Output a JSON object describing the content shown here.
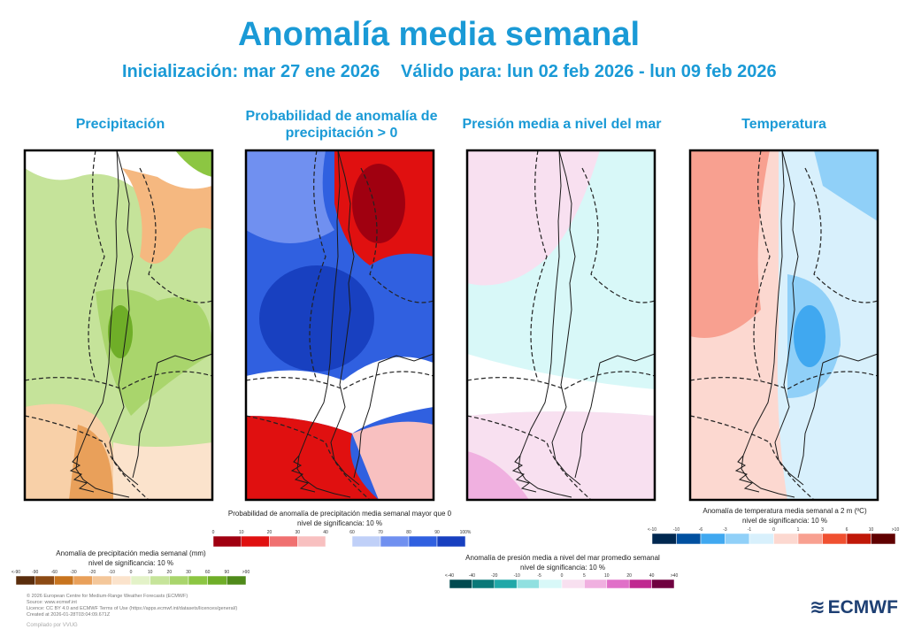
{
  "header": {
    "title": "Anomalía media semanal",
    "initialization": "Inicialización: mar 27 ene 2026",
    "valid": "Válido para: lun 02 feb 2026 - lun 09 feb 2026"
  },
  "panels": [
    {
      "title": "Precipitación"
    },
    {
      "title": "Probabilidad de anomalía de precipitación > 0"
    },
    {
      "title": "Presión media a nivel del mar"
    },
    {
      "title": "Temperatura"
    }
  ],
  "legends": {
    "precipitation": {
      "caption": "Anomalía de precipitación media semanal (mm)",
      "significance": "nivel de significancia: 10 %",
      "labels": [
        "<-90",
        "-90",
        "-60",
        "-30",
        "-20",
        "-10",
        "0",
        "10",
        "20",
        "30",
        "60",
        "90",
        ">90"
      ],
      "colors": [
        "#5a2d0c",
        "#8c4a14",
        "#c8741e",
        "#e9a05a",
        "#f4c79a",
        "#fbe3cc",
        "#e3f2c8",
        "#c6e49a",
        "#a9d56c",
        "#8cc642",
        "#6fae28",
        "#4f8a1a"
      ]
    },
    "probability": {
      "caption": "Probabilidad de anomalía de precipitación media semanal mayor que 0",
      "significance": "nivel de significancia: 10 %",
      "labels_low": [
        "0",
        "10",
        "20",
        "30",
        "40"
      ],
      "colors_low": [
        "#a00010",
        "#e01010",
        "#f07070",
        "#f8c0c0"
      ],
      "labels_high": [
        "60",
        "70",
        "80",
        "90",
        "100%"
      ],
      "colors_high": [
        "#c0d0f8",
        "#7090f0",
        "#3060e0",
        "#1840c0"
      ]
    },
    "pressure": {
      "caption": "Anomalía de presión media a nivel del mar promedio semanal",
      "significance": "nivel de significancia: 10 %",
      "labels": [
        "<-40",
        "-40",
        "-20",
        "-10",
        "-5",
        "0",
        "5",
        "10",
        "20",
        "40",
        ">40"
      ],
      "colors": [
        "#004a50",
        "#0a7878",
        "#20a8a8",
        "#90e0e0",
        "#d8f8f8",
        "#f8e0f0",
        "#f0b0e0",
        "#e070c8",
        "#c02890",
        "#700040"
      ]
    },
    "temperature": {
      "caption": "Anomalía de temperatura media semanal a 2 m (ºC)",
      "significance": "nivel de significancia: 10 %",
      "labels": [
        "<-10",
        "-10",
        "-6",
        "-3",
        "-1",
        "0",
        "1",
        "3",
        "6",
        "10",
        ">10"
      ],
      "colors": [
        "#002850",
        "#0050a0",
        "#40a8f0",
        "#90d0f8",
        "#d8f0fc",
        "#fcd8d0",
        "#f8a090",
        "#f05030",
        "#c01808",
        "#600000"
      ]
    }
  },
  "footer": {
    "credits": [
      "© 2026 European Centre for Medium-Range Weather Forecasts (ECMWF)",
      "Source: www.ecmwf.int",
      "Licence: CC BY 4.0 and ECMWF Terms of Use (https://apps.ecmwf.int/datasets/licences/general/)",
      "Created at 2026-01-28T03:04:09.671Z"
    ],
    "compiled": "Compilado por VVUG",
    "logo": "ECMWF"
  }
}
